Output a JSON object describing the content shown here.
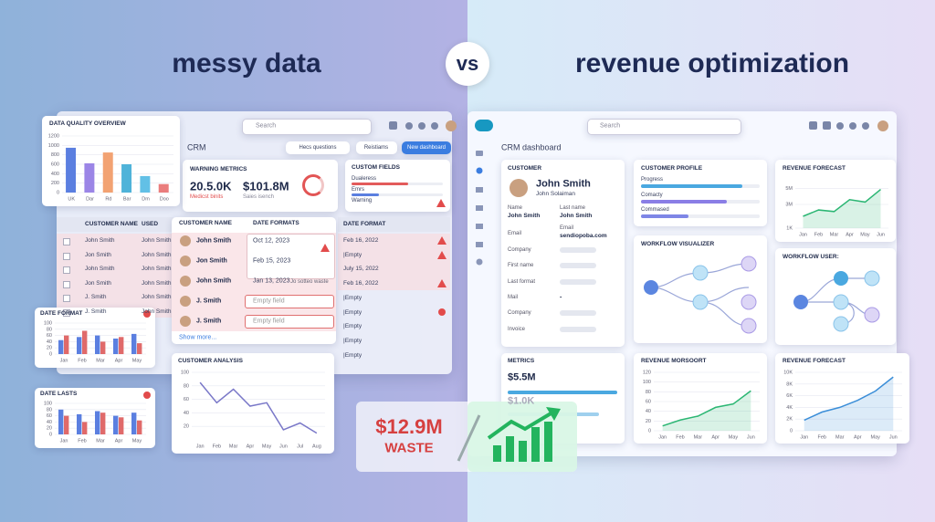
{
  "header": {
    "left_title": "messy data",
    "vs": "vs",
    "right_title": "revenue optimization"
  },
  "left": {
    "search": "Search",
    "crm": "CRM",
    "buttons": [
      "Hecs questions",
      "Reistiams",
      "New dashboard"
    ],
    "data_quality": {
      "type": "bar",
      "title": "DATA QUALITY OVERVIEW",
      "categories": [
        "UK",
        "Dar",
        "Rd",
        "Bar",
        "Dm",
        "Doo"
      ],
      "values": [
        950,
        620,
        850,
        600,
        350,
        180
      ],
      "colors": [
        "#5b7fe0",
        "#9b85e6",
        "#f2a272",
        "#4fb3d9",
        "#62c0e6",
        "#ea7d7d"
      ],
      "ylim": [
        0,
        1200
      ],
      "yticks": [
        0,
        200,
        400,
        600,
        800,
        1000,
        1200
      ]
    },
    "warning_metrics": {
      "title": "WARNING METRICS",
      "value1": "20.5.0K",
      "caption1": "Medicst binits",
      "value2": "$101.8M",
      "caption2": "Saies isench"
    },
    "custom_fields": {
      "title": "CUSTOM FIELDS",
      "xlim": [
        0,
        100
      ],
      "items": [
        {
          "label": "Dualeress",
          "value": 62,
          "color": "#e35b5b"
        },
        {
          "label": "Emrs",
          "value": 30,
          "color": "#5b7fe0"
        },
        {
          "label": "Warning"
        }
      ]
    },
    "table": {
      "headers": [
        "CUSTOMER NAME",
        "USED"
      ],
      "rows": [
        [
          "John Smith",
          "John Smith"
        ],
        [
          "Jon Smith",
          "John Smith"
        ],
        [
          "John Smith",
          "John Smith"
        ],
        [
          "Jon Smith",
          "John Smith"
        ],
        [
          "J. Smith",
          "John Smith"
        ],
        [
          "J. Smith",
          "John Smith"
        ]
      ]
    },
    "popup": {
      "headers": [
        "CUSTOMER NAME",
        "DATE FORMATS"
      ],
      "rows": [
        {
          "name": "John Smith",
          "date": "Oct 12, 2023"
        },
        {
          "name": "Jon Smith",
          "date": "Feb 15, 2023"
        },
        {
          "name": "John Smith",
          "date": "Jan 13, 2023"
        },
        {
          "name": "J. Smith",
          "date": "Empty field"
        },
        {
          "name": "J. Smith",
          "date": "Empty field"
        }
      ],
      "note": "Jo sotteo waste",
      "show_more": "Show more..."
    },
    "date_column": {
      "header": "DATE FORMAT",
      "rows": [
        "Feb 16, 2022",
        "|Empty",
        "July 15, 2022",
        "Feb 16, 2022",
        "|Empty",
        "|Empty",
        "|Empty",
        "|Empty",
        "|Empty"
      ]
    },
    "date_format_chart": {
      "type": "bar",
      "title": "DATE FORMAT",
      "categories": [
        "Jan",
        "Feb",
        "Mar",
        "Apr",
        "May"
      ],
      "series": [
        {
          "color": "#5b7fe0",
          "values": [
            45,
            55,
            60,
            50,
            65
          ]
        },
        {
          "color": "#e06a6a",
          "values": [
            60,
            75,
            40,
            55,
            35
          ]
        }
      ],
      "ylim": [
        0,
        100
      ],
      "yticks": [
        0,
        20,
        40,
        60,
        80,
        100
      ]
    },
    "date_lasts_chart": {
      "type": "bar",
      "title": "DATE LASTS",
      "categories": [
        "Jan",
        "Feb",
        "Mar",
        "Apr",
        "May"
      ],
      "series": [
        {
          "color": "#5b7fe0",
          "values": [
            80,
            65,
            75,
            60,
            70
          ]
        },
        {
          "color": "#e06a6a",
          "values": [
            60,
            40,
            70,
            55,
            45
          ]
        }
      ],
      "ylim": [
        0,
        100
      ],
      "yticks": [
        0,
        20,
        40,
        60,
        80,
        100
      ]
    },
    "customer_analysis": {
      "type": "line",
      "title": "CUSTOMER ANALYSIS",
      "categories": [
        "Jan",
        "Feb",
        "Mar",
        "Apr",
        "May",
        "Jun",
        "Jul",
        "Aug"
      ],
      "values": [
        85,
        55,
        75,
        50,
        55,
        15,
        25,
        10
      ],
      "color": "#7a78c8",
      "ylim": [
        0,
        100
      ],
      "yticks": [
        20,
        40,
        60,
        80,
        100
      ]
    },
    "waste": {
      "amount": "$12.9M",
      "label": "WASTE"
    }
  },
  "right": {
    "search": "Search",
    "title": "CRM dashboard",
    "customer": {
      "title": "CUSTOMER",
      "name": "John Smith",
      "subtitle": "John Solaiman",
      "fields": [
        {
          "label": "Name",
          "value": "John Smith"
        },
        {
          "label": "Last name",
          "value": "John Smith"
        },
        {
          "label": "Email"
        },
        {
          "label": "Email",
          "value": "sendiopoba.com"
        },
        {
          "label": "Company"
        },
        {
          "label": "First name"
        },
        {
          "label": "Last format"
        },
        {
          "label": "Mail",
          "value": "-"
        },
        {
          "label": "Company"
        },
        {
          "label": "Invoice"
        }
      ]
    },
    "profile": {
      "title": "CUSTOMER PROFILE",
      "xlim": [
        0,
        100
      ],
      "items": [
        {
          "label": "Progress",
          "value": 85,
          "color": "#4aa8e0"
        },
        {
          "label": "Comacty",
          "value": 72,
          "color": "#8a7ee6"
        },
        {
          "label": "Commased",
          "value": 40,
          "color": "#7e86e6"
        }
      ]
    },
    "forecast1": {
      "type": "area",
      "title": "REVENUE FORECAST",
      "categories": [
        "Jan",
        "Feb",
        "Mar",
        "Apr",
        "May",
        "Jun"
      ],
      "values": [
        1500000,
        2300000,
        2100000,
        3600000,
        3300000,
        4900000
      ],
      "color": "#2bb673",
      "ylim": [
        0,
        6000000
      ],
      "yticks": [
        {
          "value": 1000,
          "label": "1K"
        },
        {
          "value": 3000000,
          "label": "3M"
        },
        {
          "value": 5000000,
          "label": "5M"
        }
      ]
    },
    "workflow1": {
      "title": "WORKFLOW VISUALIZER"
    },
    "workflow2": {
      "title": "WORKFLOW USER:"
    },
    "metrics": {
      "title": "METRICS",
      "value1": "$5.5M",
      "value2": "$1.0K"
    },
    "revenue_chart": {
      "type": "area",
      "title": "REVENUE MORSOORT",
      "categories": [
        "Jan",
        "Feb",
        "Mar",
        "Apr",
        "May",
        "Jun"
      ],
      "values": [
        10,
        22,
        30,
        48,
        55,
        82
      ],
      "color": "#2bb673",
      "ylim": [
        0,
        120
      ],
      "yticks": [
        0,
        20,
        40,
        60,
        80,
        100,
        120
      ]
    },
    "forecast2": {
      "type": "area",
      "title": "REVENUE FORECAST",
      "categories": [
        "Jan",
        "Feb",
        "Mar",
        "Apr",
        "May",
        "Jun"
      ],
      "values": [
        1800,
        3200,
        4000,
        5200,
        6800,
        9200
      ],
      "color": "#3b8ed8",
      "ylim": [
        0,
        10000
      ],
      "yticks": [
        0,
        {
          "value": 2000,
          "label": "2K"
        },
        {
          "value": 4000,
          "label": "4K"
        },
        {
          "value": 6000,
          "label": "6K"
        },
        {
          "value": 8000,
          "label": "8K"
        },
        {
          "value": 10000,
          "label": "10K"
        }
      ]
    }
  }
}
